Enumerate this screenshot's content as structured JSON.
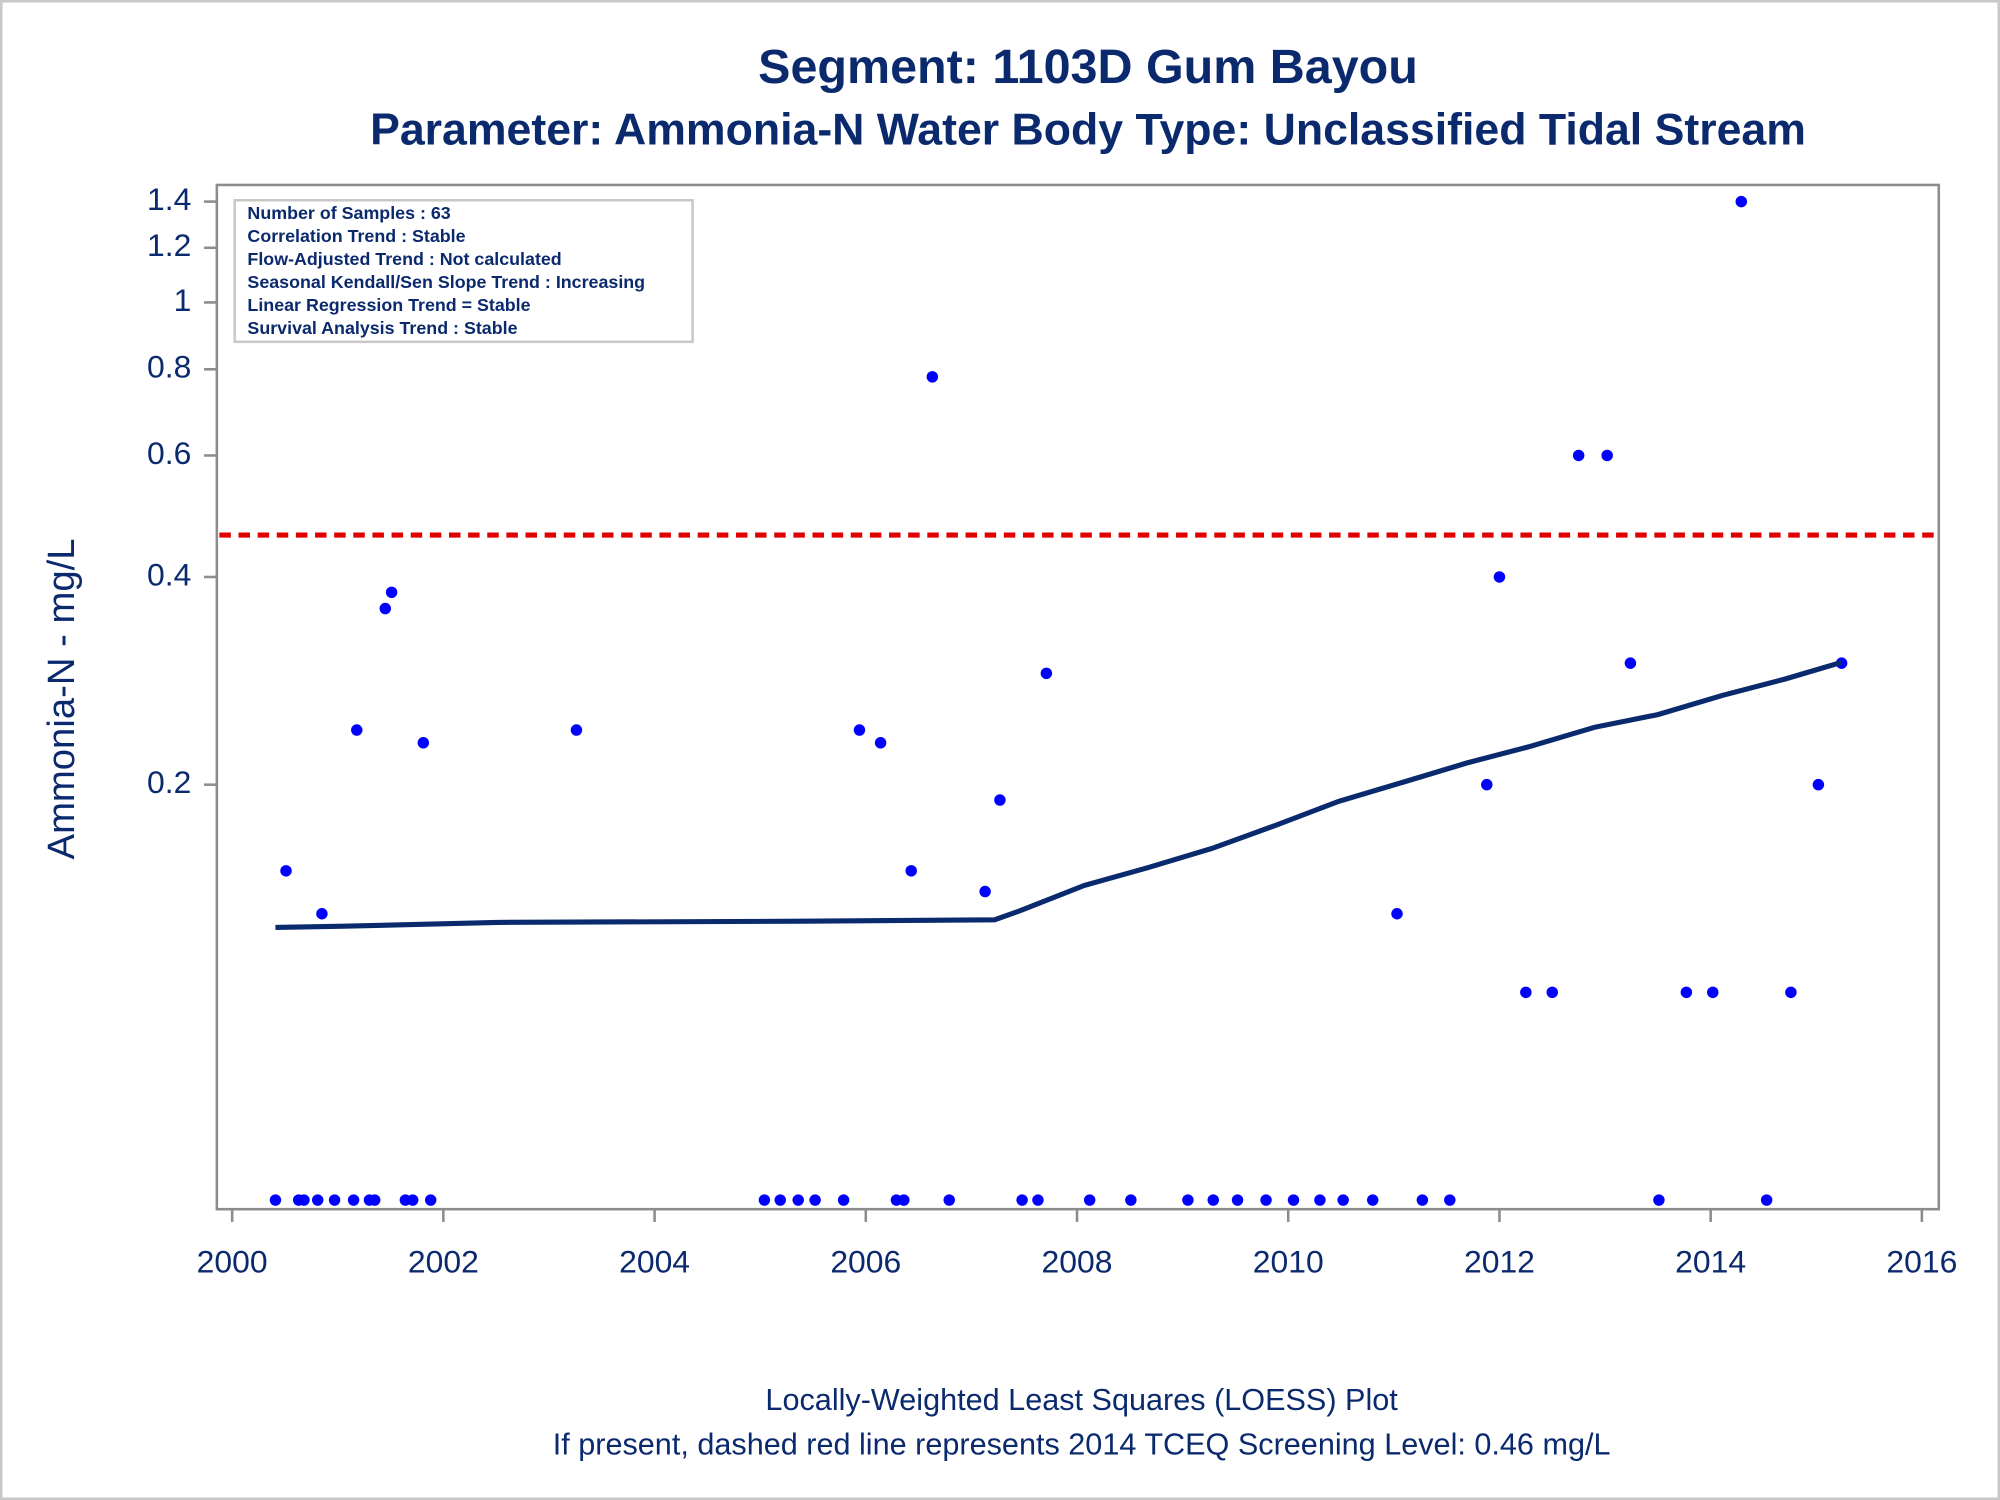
{
  "chart_data": {
    "type": "scatter",
    "title": "Segment: 1103D  Gum Bayou",
    "subtitle": "Parameter: Ammonia-N   Water Body Type: Unclassified Tidal Stream",
    "y_label": "Ammonia-N - mg/L",
    "notes": [
      "Locally-Weighted Least Squares (LOESS) Plot",
      "If present, dashed red line represents 2014 TCEQ Screening Level: 0.46 mg/L"
    ],
    "stats_box": [
      "Number of Samples : 63",
      "Correlation Trend : Stable",
      "Flow-Adjusted Trend : Not calculated",
      "Seasonal Kendall/Sen Slope Trend : Increasing",
      "Linear Regression Trend = Stable",
      "Survival Analysis Trend : Stable"
    ],
    "y_log": true,
    "xlim": [
      1999.855,
      2016.16
    ],
    "xticks": [
      2000,
      2002,
      2004,
      2006,
      2008,
      2010,
      2012,
      2014,
      2016
    ],
    "ylim": [
      0.0485,
      1.48
    ],
    "yticks": [
      0.2,
      0.4,
      0.6,
      0.8,
      1,
      1.2,
      1.4
    ],
    "reference_line": {
      "value": 0.46,
      "color": "#e00000",
      "style": "dashed"
    },
    "series": [
      {
        "type": "scatter",
        "color": "#0000ff",
        "x": [
          2000.41,
          2000.51,
          2000.63,
          2000.68,
          2000.81,
          2000.85,
          2000.97,
          2001.15,
          2001.18,
          2001.3,
          2001.35,
          2001.45,
          2001.51,
          2001.64,
          2001.71,
          2001.81,
          2001.88,
          2003.26,
          2005.04,
          2005.19,
          2005.36,
          2005.52,
          2005.79,
          2005.94,
          2006.14,
          2006.29,
          2006.36,
          2006.43,
          2006.63,
          2006.79,
          2007.13,
          2007.27,
          2007.48,
          2007.63,
          2007.71,
          2008.12,
          2008.51,
          2009.05,
          2009.29,
          2009.52,
          2009.79,
          2010.05,
          2010.3,
          2010.52,
          2010.8,
          2011.03,
          2011.27,
          2011.53,
          2011.88,
          2012.0,
          2012.25,
          2012.5,
          2012.75,
          2013.02,
          2013.24,
          2013.51,
          2013.77,
          2014.02,
          2014.29,
          2014.53,
          2014.76,
          2015.02,
          2015.24
        ],
        "values": [
          0.05,
          0.15,
          0.05,
          0.05,
          0.05,
          0.13,
          0.05,
          0.05,
          0.24,
          0.05,
          0.05,
          0.36,
          0.38,
          0.05,
          0.05,
          0.23,
          0.05,
          0.24,
          0.05,
          0.05,
          0.05,
          0.05,
          0.05,
          0.24,
          0.23,
          0.05,
          0.05,
          0.15,
          0.78,
          0.05,
          0.14,
          0.19,
          0.05,
          0.05,
          0.29,
          0.05,
          0.05,
          0.05,
          0.05,
          0.05,
          0.05,
          0.05,
          0.05,
          0.05,
          0.05,
          0.13,
          0.05,
          0.05,
          0.2,
          0.4,
          0.1,
          0.1,
          0.6,
          0.6,
          0.3,
          0.05,
          0.1,
          0.1,
          1.4,
          0.05,
          0.1,
          0.2,
          0.3
        ]
      },
      {
        "type": "line",
        "color": "#0a2a6e",
        "x": [
          2000.41,
          2001.06,
          2002.51,
          2005.41,
          2007.22,
          2007.46,
          2008.07,
          2008.67,
          2009.28,
          2009.88,
          2010.48,
          2011.09,
          2011.69,
          2012.29,
          2012.9,
          2013.5,
          2014.11,
          2014.71,
          2015.24
        ],
        "values": [
          0.1242,
          0.1247,
          0.1263,
          0.1268,
          0.1274,
          0.1313,
          0.1429,
          0.1516,
          0.1617,
          0.1746,
          0.1892,
          0.2017,
          0.215,
          0.2272,
          0.2422,
          0.2527,
          0.2694,
          0.2847,
          0.3009
        ]
      }
    ]
  }
}
